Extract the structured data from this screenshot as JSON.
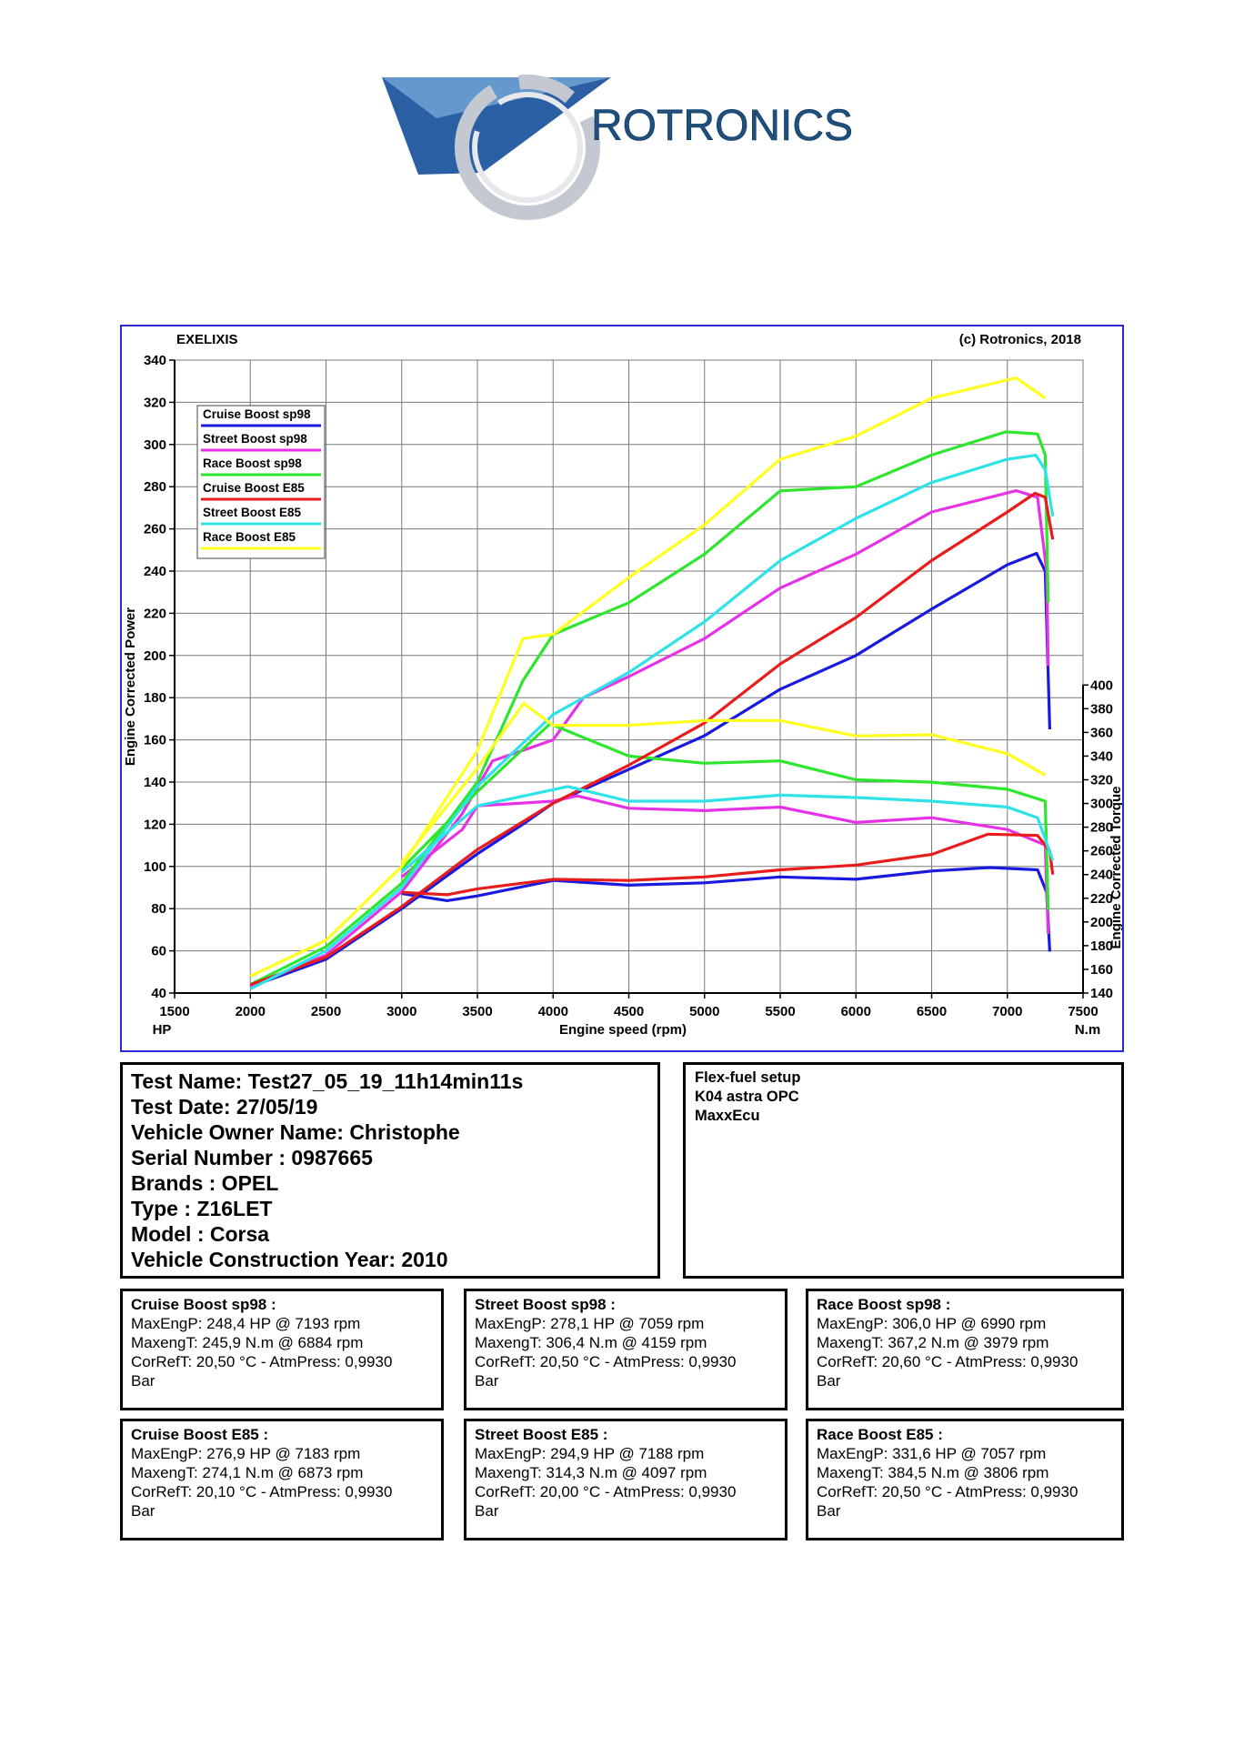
{
  "brand": {
    "name": "ROTRONICS",
    "logo_colors": [
      "#1f4f8c",
      "#4a8fc9",
      "#c9ced6"
    ]
  },
  "chart_header": {
    "left": "EXELIXIS",
    "right": "(c) Rotronics, 2018"
  },
  "chart_data": {
    "type": "line",
    "title": "",
    "xlabel": "Engine speed (rpm)",
    "ylabel": "Engine Corrected Power",
    "y2label": "Engine Corrected Torque",
    "x_unit_label": "HP",
    "y2_unit_label": "N.m",
    "xlim": [
      1500,
      7500
    ],
    "ylim": [
      40,
      340
    ],
    "y2lim": [
      140,
      400
    ],
    "xticks": [
      1500,
      2000,
      2500,
      3000,
      3500,
      4000,
      4500,
      5000,
      5500,
      6000,
      6500,
      7000,
      7500
    ],
    "yticks": [
      40,
      60,
      80,
      100,
      120,
      140,
      160,
      180,
      200,
      220,
      240,
      260,
      280,
      300,
      320,
      340
    ],
    "y2ticks": [
      140,
      160,
      180,
      200,
      220,
      240,
      260,
      280,
      300,
      320,
      340,
      360,
      380,
      400
    ],
    "grid": true,
    "legend_position": "top-left",
    "series": [
      {
        "name": "Cruise Boost sp98",
        "color": "#1a1adf",
        "power": [
          [
            2000,
            43
          ],
          [
            2500,
            56
          ],
          [
            3000,
            80
          ],
          [
            3500,
            106
          ],
          [
            3800,
            120
          ],
          [
            4000,
            130
          ],
          [
            4500,
            146
          ],
          [
            5000,
            162
          ],
          [
            5500,
            184
          ],
          [
            6000,
            200
          ],
          [
            6500,
            222
          ],
          [
            7000,
            243
          ],
          [
            7193,
            248.4
          ],
          [
            7250,
            240
          ],
          [
            7280,
            165
          ]
        ],
        "torque": [
          [
            3000,
            224
          ],
          [
            3300,
            218
          ],
          [
            3500,
            222
          ],
          [
            4000,
            235
          ],
          [
            4500,
            231
          ],
          [
            5000,
            233
          ],
          [
            5500,
            238
          ],
          [
            6000,
            236
          ],
          [
            6500,
            243
          ],
          [
            6884,
            245.9
          ],
          [
            7200,
            244
          ],
          [
            7260,
            225
          ],
          [
            7280,
            175
          ]
        ]
      },
      {
        "name": "Street Boost sp98",
        "color": "#e632e6",
        "power": [
          [
            2000,
            43
          ],
          [
            2500,
            58
          ],
          [
            3000,
            88
          ],
          [
            3400,
            125
          ],
          [
            3600,
            150
          ],
          [
            4000,
            160
          ],
          [
            4200,
            180
          ],
          [
            4500,
            190
          ],
          [
            5000,
            208
          ],
          [
            5500,
            232
          ],
          [
            6000,
            248
          ],
          [
            6500,
            268
          ],
          [
            7059,
            278.1
          ],
          [
            7200,
            275
          ],
          [
            7260,
            240
          ],
          [
            7270,
            195
          ]
        ],
        "torque": [
          [
            3000,
            238
          ],
          [
            3400,
            278
          ],
          [
            3500,
            298
          ],
          [
            4000,
            302
          ],
          [
            4159,
            306.4
          ],
          [
            4500,
            296
          ],
          [
            5000,
            294
          ],
          [
            5500,
            297
          ],
          [
            6000,
            284
          ],
          [
            6500,
            288
          ],
          [
            7000,
            278
          ],
          [
            7250,
            265
          ],
          [
            7270,
            190
          ]
        ]
      },
      {
        "name": "Race Boost sp98",
        "color": "#2ee62e",
        "power": [
          [
            2000,
            44
          ],
          [
            2500,
            62
          ],
          [
            3000,
            92
          ],
          [
            3500,
            140
          ],
          [
            3800,
            188
          ],
          [
            4000,
            210
          ],
          [
            4500,
            225
          ],
          [
            5000,
            248
          ],
          [
            5500,
            278
          ],
          [
            6000,
            280
          ],
          [
            6500,
            295
          ],
          [
            6990,
            306.0
          ],
          [
            7200,
            305
          ],
          [
            7250,
            295
          ],
          [
            7270,
            225
          ]
        ],
        "torque": [
          [
            3000,
            245
          ],
          [
            3500,
            310
          ],
          [
            3979,
            367.2
          ],
          [
            4500,
            340
          ],
          [
            5000,
            334
          ],
          [
            5500,
            336
          ],
          [
            6000,
            320
          ],
          [
            6500,
            318
          ],
          [
            7000,
            312
          ],
          [
            7250,
            302
          ],
          [
            7270,
            210
          ]
        ]
      },
      {
        "name": "Cruise Boost E85",
        "color": "#e81c1c",
        "power": [
          [
            2000,
            44
          ],
          [
            2500,
            57
          ],
          [
            3000,
            81
          ],
          [
            3500,
            108
          ],
          [
            4000,
            130
          ],
          [
            4500,
            148
          ],
          [
            5000,
            168
          ],
          [
            5500,
            196
          ],
          [
            6000,
            218
          ],
          [
            6500,
            245
          ],
          [
            7000,
            268
          ],
          [
            7183,
            276.9
          ],
          [
            7250,
            275
          ],
          [
            7300,
            255
          ]
        ],
        "torque": [
          [
            3000,
            225
          ],
          [
            3300,
            223
          ],
          [
            3500,
            228
          ],
          [
            4000,
            236
          ],
          [
            4500,
            235
          ],
          [
            5000,
            238
          ],
          [
            5500,
            244
          ],
          [
            6000,
            248
          ],
          [
            6500,
            257
          ],
          [
            6873,
            274.1
          ],
          [
            7200,
            273
          ],
          [
            7280,
            260
          ],
          [
            7300,
            240
          ]
        ]
      },
      {
        "name": "Street Boost E85",
        "color": "#2ee2e8",
        "power": [
          [
            2000,
            42
          ],
          [
            2500,
            60
          ],
          [
            3000,
            90
          ],
          [
            3500,
            138
          ],
          [
            4000,
            172
          ],
          [
            4500,
            192
          ],
          [
            5000,
            216
          ],
          [
            5500,
            245
          ],
          [
            6000,
            265
          ],
          [
            6500,
            282
          ],
          [
            7000,
            293
          ],
          [
            7188,
            294.9
          ],
          [
            7250,
            288
          ],
          [
            7300,
            266
          ]
        ],
        "torque": [
          [
            3000,
            242
          ],
          [
            3500,
            298
          ],
          [
            4097,
            314.3
          ],
          [
            4500,
            302
          ],
          [
            5000,
            302
          ],
          [
            5500,
            307
          ],
          [
            6000,
            305
          ],
          [
            6500,
            302
          ],
          [
            7000,
            297
          ],
          [
            7200,
            288
          ],
          [
            7300,
            252
          ]
        ]
      },
      {
        "name": "Race Boost E85",
        "color": "#ffff20",
        "power": [
          [
            2000,
            48
          ],
          [
            2500,
            65
          ],
          [
            3000,
            100
          ],
          [
            3500,
            155
          ],
          [
            3800,
            208
          ],
          [
            4000,
            210
          ],
          [
            4500,
            237
          ],
          [
            5000,
            262
          ],
          [
            5500,
            293
          ],
          [
            6000,
            304
          ],
          [
            6500,
            322
          ],
          [
            7057,
            331.6
          ],
          [
            7250,
            322
          ]
        ],
        "torque": [
          [
            3000,
            250
          ],
          [
            3500,
            330
          ],
          [
            3806,
            384.5
          ],
          [
            4000,
            366
          ],
          [
            4500,
            366
          ],
          [
            5000,
            370
          ],
          [
            5500,
            370
          ],
          [
            6000,
            357
          ],
          [
            6500,
            358
          ],
          [
            7000,
            342
          ],
          [
            7250,
            324
          ]
        ]
      }
    ]
  },
  "test_info": [
    "Test Name: Test27_05_19_11h14min11s",
    "Test Date: 27/05/19",
    "Vehicle Owner Name: Christophe",
    "Serial Number  : 0987665",
    "Brands  : OPEL",
    "Type  : Z16LET",
    "Model  : Corsa",
    "Vehicle Construction Year: 2010"
  ],
  "setup_notes": [
    "Flex-fuel setup",
    "K04 astra OPC",
    "MaxxEcu"
  ],
  "results": [
    {
      "title": "Cruise Boost sp98 :",
      "line1": "MaxEngP: 248,4 HP @ 7193 rpm",
      "line2": "MaxengT: 245,9 N.m @ 6884 rpm",
      "line3": "CorRefT: 20,50 °C - AtmPress: 0,9930",
      "line4": "Bar"
    },
    {
      "title": "Street Boost sp98 :",
      "line1": "MaxEngP: 278,1 HP @ 7059 rpm",
      "line2": "MaxengT: 306,4 N.m @ 4159 rpm",
      "line3": "CorRefT: 20,50 °C - AtmPress: 0,9930",
      "line4": "Bar"
    },
    {
      "title": "Race Boost sp98 :",
      "line1": "MaxEngP: 306,0 HP @ 6990 rpm",
      "line2": "MaxengT: 367,2 N.m @ 3979 rpm",
      "line3": "CorRefT: 20,60 °C - AtmPress: 0,9930",
      "line4": "Bar"
    },
    {
      "title": "Cruise Boost E85 :",
      "line1": "MaxEngP: 276,9 HP @ 7183 rpm",
      "line2": "MaxengT: 274,1 N.m @ 6873 rpm",
      "line3": "CorRefT: 20,10 °C - AtmPress: 0,9930",
      "line4": "Bar"
    },
    {
      "title": "Street Boost E85 :",
      "line1": "MaxEngP: 294,9 HP @ 7188 rpm",
      "line2": "MaxengT: 314,3 N.m @ 4097 rpm",
      "line3": "CorRefT: 20,00 °C - AtmPress: 0,9930",
      "line4": "Bar"
    },
    {
      "title": "Race Boost E85 :",
      "line1": "MaxEngP: 331,6 HP @ 7057 rpm",
      "line2": "MaxengT: 384,5 N.m @ 3806 rpm",
      "line3": "CorRefT: 20,50 °C - AtmPress: 0,9930",
      "line4": "Bar"
    }
  ]
}
